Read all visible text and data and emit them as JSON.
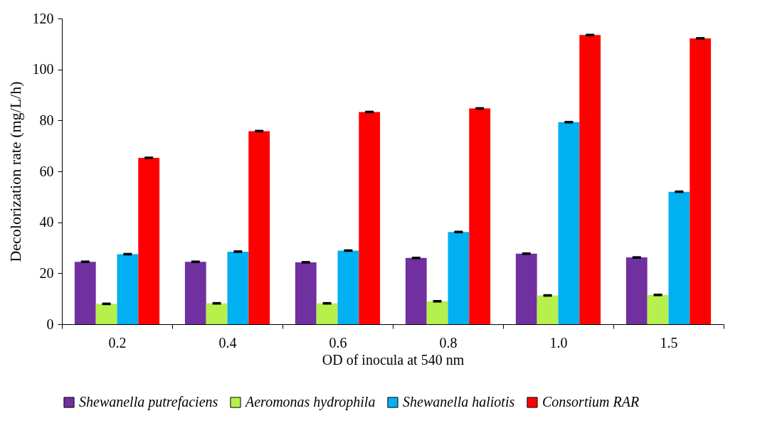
{
  "chart_data": {
    "type": "bar",
    "xlabel": "OD of inocula at 540 nm",
    "ylabel": "Decolorization rate (mg/L/h)",
    "categories": [
      "0.2",
      "0.4",
      "0.6",
      "0.8",
      "1.0",
      "1.5"
    ],
    "series": [
      {
        "name": "Shewanella putrefaciens",
        "color": "#7030a0",
        "values": [
          24.5,
          24.5,
          24.3,
          26,
          27.7,
          26.2
        ],
        "errors": [
          0.5,
          0.5,
          0.5,
          0.5,
          0.5,
          0.5
        ]
      },
      {
        "name": "Aeromonas hydrophila",
        "color": "#b5f04c",
        "values": [
          8,
          8.2,
          8.2,
          9,
          11.3,
          11.5
        ],
        "errors": [
          0.5,
          0.5,
          0.5,
          0.5,
          0.5,
          0.5
        ]
      },
      {
        "name": "Shewanella haliotis",
        "color": "#00b0f0",
        "values": [
          27.5,
          28.5,
          28.9,
          36.2,
          79.3,
          52
        ],
        "errors": [
          0.5,
          0.5,
          0.5,
          0.5,
          0.5,
          0.5
        ]
      },
      {
        "name": "Consortium RAR",
        "color": "#ff0000",
        "values": [
          65.3,
          75.8,
          83.3,
          84.7,
          113.5,
          112.2
        ],
        "errors": [
          0.5,
          0.5,
          0.5,
          0.5,
          0.5,
          0.5
        ]
      }
    ],
    "ylim": [
      0,
      120
    ],
    "yticks": [
      0,
      20,
      40,
      60,
      80,
      100,
      120
    ],
    "grid": false,
    "legend": "bottom"
  }
}
